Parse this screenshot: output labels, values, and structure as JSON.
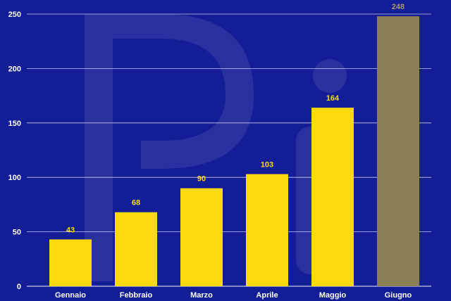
{
  "chart_data": {
    "type": "bar",
    "title": "",
    "xlabel": "",
    "ylabel": "",
    "categories": [
      "Gennaio",
      "Febbraio",
      "Marzo",
      "Aprile",
      "Maggio",
      "Giugno"
    ],
    "values": [
      43,
      68,
      90,
      103,
      164,
      248
    ],
    "ylim": [
      0,
      250
    ],
    "yticks": [
      0,
      50,
      100,
      150,
      200,
      250
    ],
    "grid": true,
    "colors": {
      "background": "#131d96",
      "bar": "#fbd90f",
      "highlight_bar": "#8a7e57",
      "label": "#fbd90f",
      "highlight_label": "#a59a78",
      "grid": "#c5c8e8"
    },
    "highlight_index": 5
  }
}
